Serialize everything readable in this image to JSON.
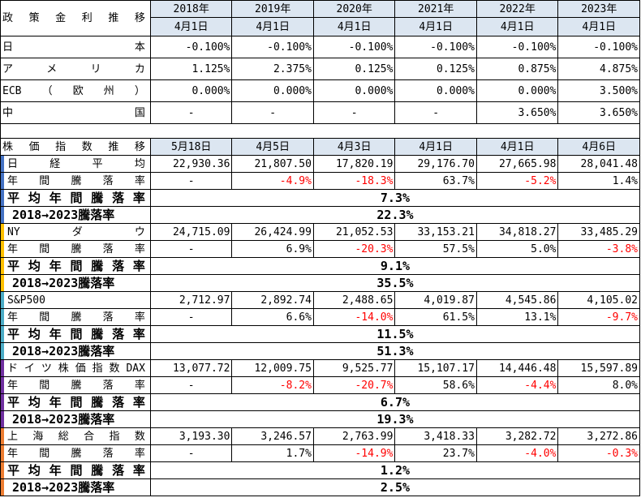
{
  "policy": {
    "title": "政策金利推移",
    "years": [
      "2018年",
      "2019年",
      "2020年",
      "2021年",
      "2022年",
      "2023年"
    ],
    "dates": [
      "4月1日",
      "4月1日",
      "4月1日",
      "4月1日",
      "4月1日",
      "4月1日"
    ],
    "rows": [
      {
        "label": "日本",
        "values": [
          "-0.100%",
          "-0.100%",
          "-0.100%",
          "-0.100%",
          "-0.100%",
          "-0.100%"
        ]
      },
      {
        "label": "アメリカ",
        "values": [
          "1.125%",
          "2.375%",
          "0.125%",
          "0.125%",
          "0.875%",
          "4.875%"
        ]
      },
      {
        "label": "ECB（欧州）",
        "values": [
          "0.000%",
          "0.000%",
          "0.000%",
          "0.000%",
          "0.000%",
          "3.500%"
        ]
      },
      {
        "label": "中国",
        "values": [
          "-",
          "-",
          "-",
          "-",
          "3.650%",
          "3.650%"
        ]
      }
    ]
  },
  "stocks": {
    "title": "株価指数推移",
    "dates": [
      "5月18日",
      "4月5日",
      "4月3日",
      "4月1日",
      "4月1日",
      "4月6日"
    ],
    "change_label": "年間騰落率",
    "avg_label": "平均年間騰落率",
    "total_label": "2018→2023騰落率",
    "indices": [
      {
        "name": "日経平均",
        "bar": "#4472c4",
        "values": [
          "22,930.36",
          "21,807.50",
          "17,820.19",
          "29,176.70",
          "27,665.98",
          "28,041.48"
        ],
        "changes": [
          "-",
          "-4.9%",
          "-18.3%",
          "63.7%",
          "-5.2%",
          "1.4%"
        ],
        "avg": "7.3%",
        "total": "22.3%"
      },
      {
        "name": "NYダウ",
        "bar": "#ffc000",
        "values": [
          "24,715.09",
          "26,424.99",
          "21,052.53",
          "33,153.21",
          "34,818.27",
          "33,485.29"
        ],
        "changes": [
          "-",
          "6.9%",
          "-20.3%",
          "57.5%",
          "5.0%",
          "-3.8%"
        ],
        "avg": "9.1%",
        "total": "35.5%"
      },
      {
        "name": "S&P500",
        "bar": "#4bacc6",
        "values": [
          "2,712.97",
          "2,892.74",
          "2,488.65",
          "4,019.87",
          "4,545.86",
          "4,105.02"
        ],
        "changes": [
          "-",
          "6.6%",
          "-14.0%",
          "61.5%",
          "13.1%",
          "-9.7%"
        ],
        "avg": "11.5%",
        "total": "51.3%"
      },
      {
        "name": "ドイツ株価指数 DAX",
        "bar": "#7030a0",
        "values": [
          "13,077.72",
          "12,009.75",
          "9,525.77",
          "15,107.17",
          "14,446.48",
          "15,597.89"
        ],
        "changes": [
          "-",
          "-8.2%",
          "-20.7%",
          "58.6%",
          "-4.4%",
          "8.0%"
        ],
        "avg": "6.7%",
        "total": "19.3%"
      },
      {
        "name": "上海総合指数",
        "bar": "#ed7d31",
        "values": [
          "3,193.30",
          "3,246.57",
          "2,763.99",
          "3,418.33",
          "3,282.72",
          "3,272.86"
        ],
        "changes": [
          "-",
          "1.7%",
          "-14.9%",
          "23.7%",
          "-4.0%",
          "-0.3%"
        ],
        "avg": "1.2%",
        "total": "2.5%"
      }
    ]
  },
  "colors": {
    "negative": "#ff0000",
    "header_bg": "#dce6f1"
  }
}
